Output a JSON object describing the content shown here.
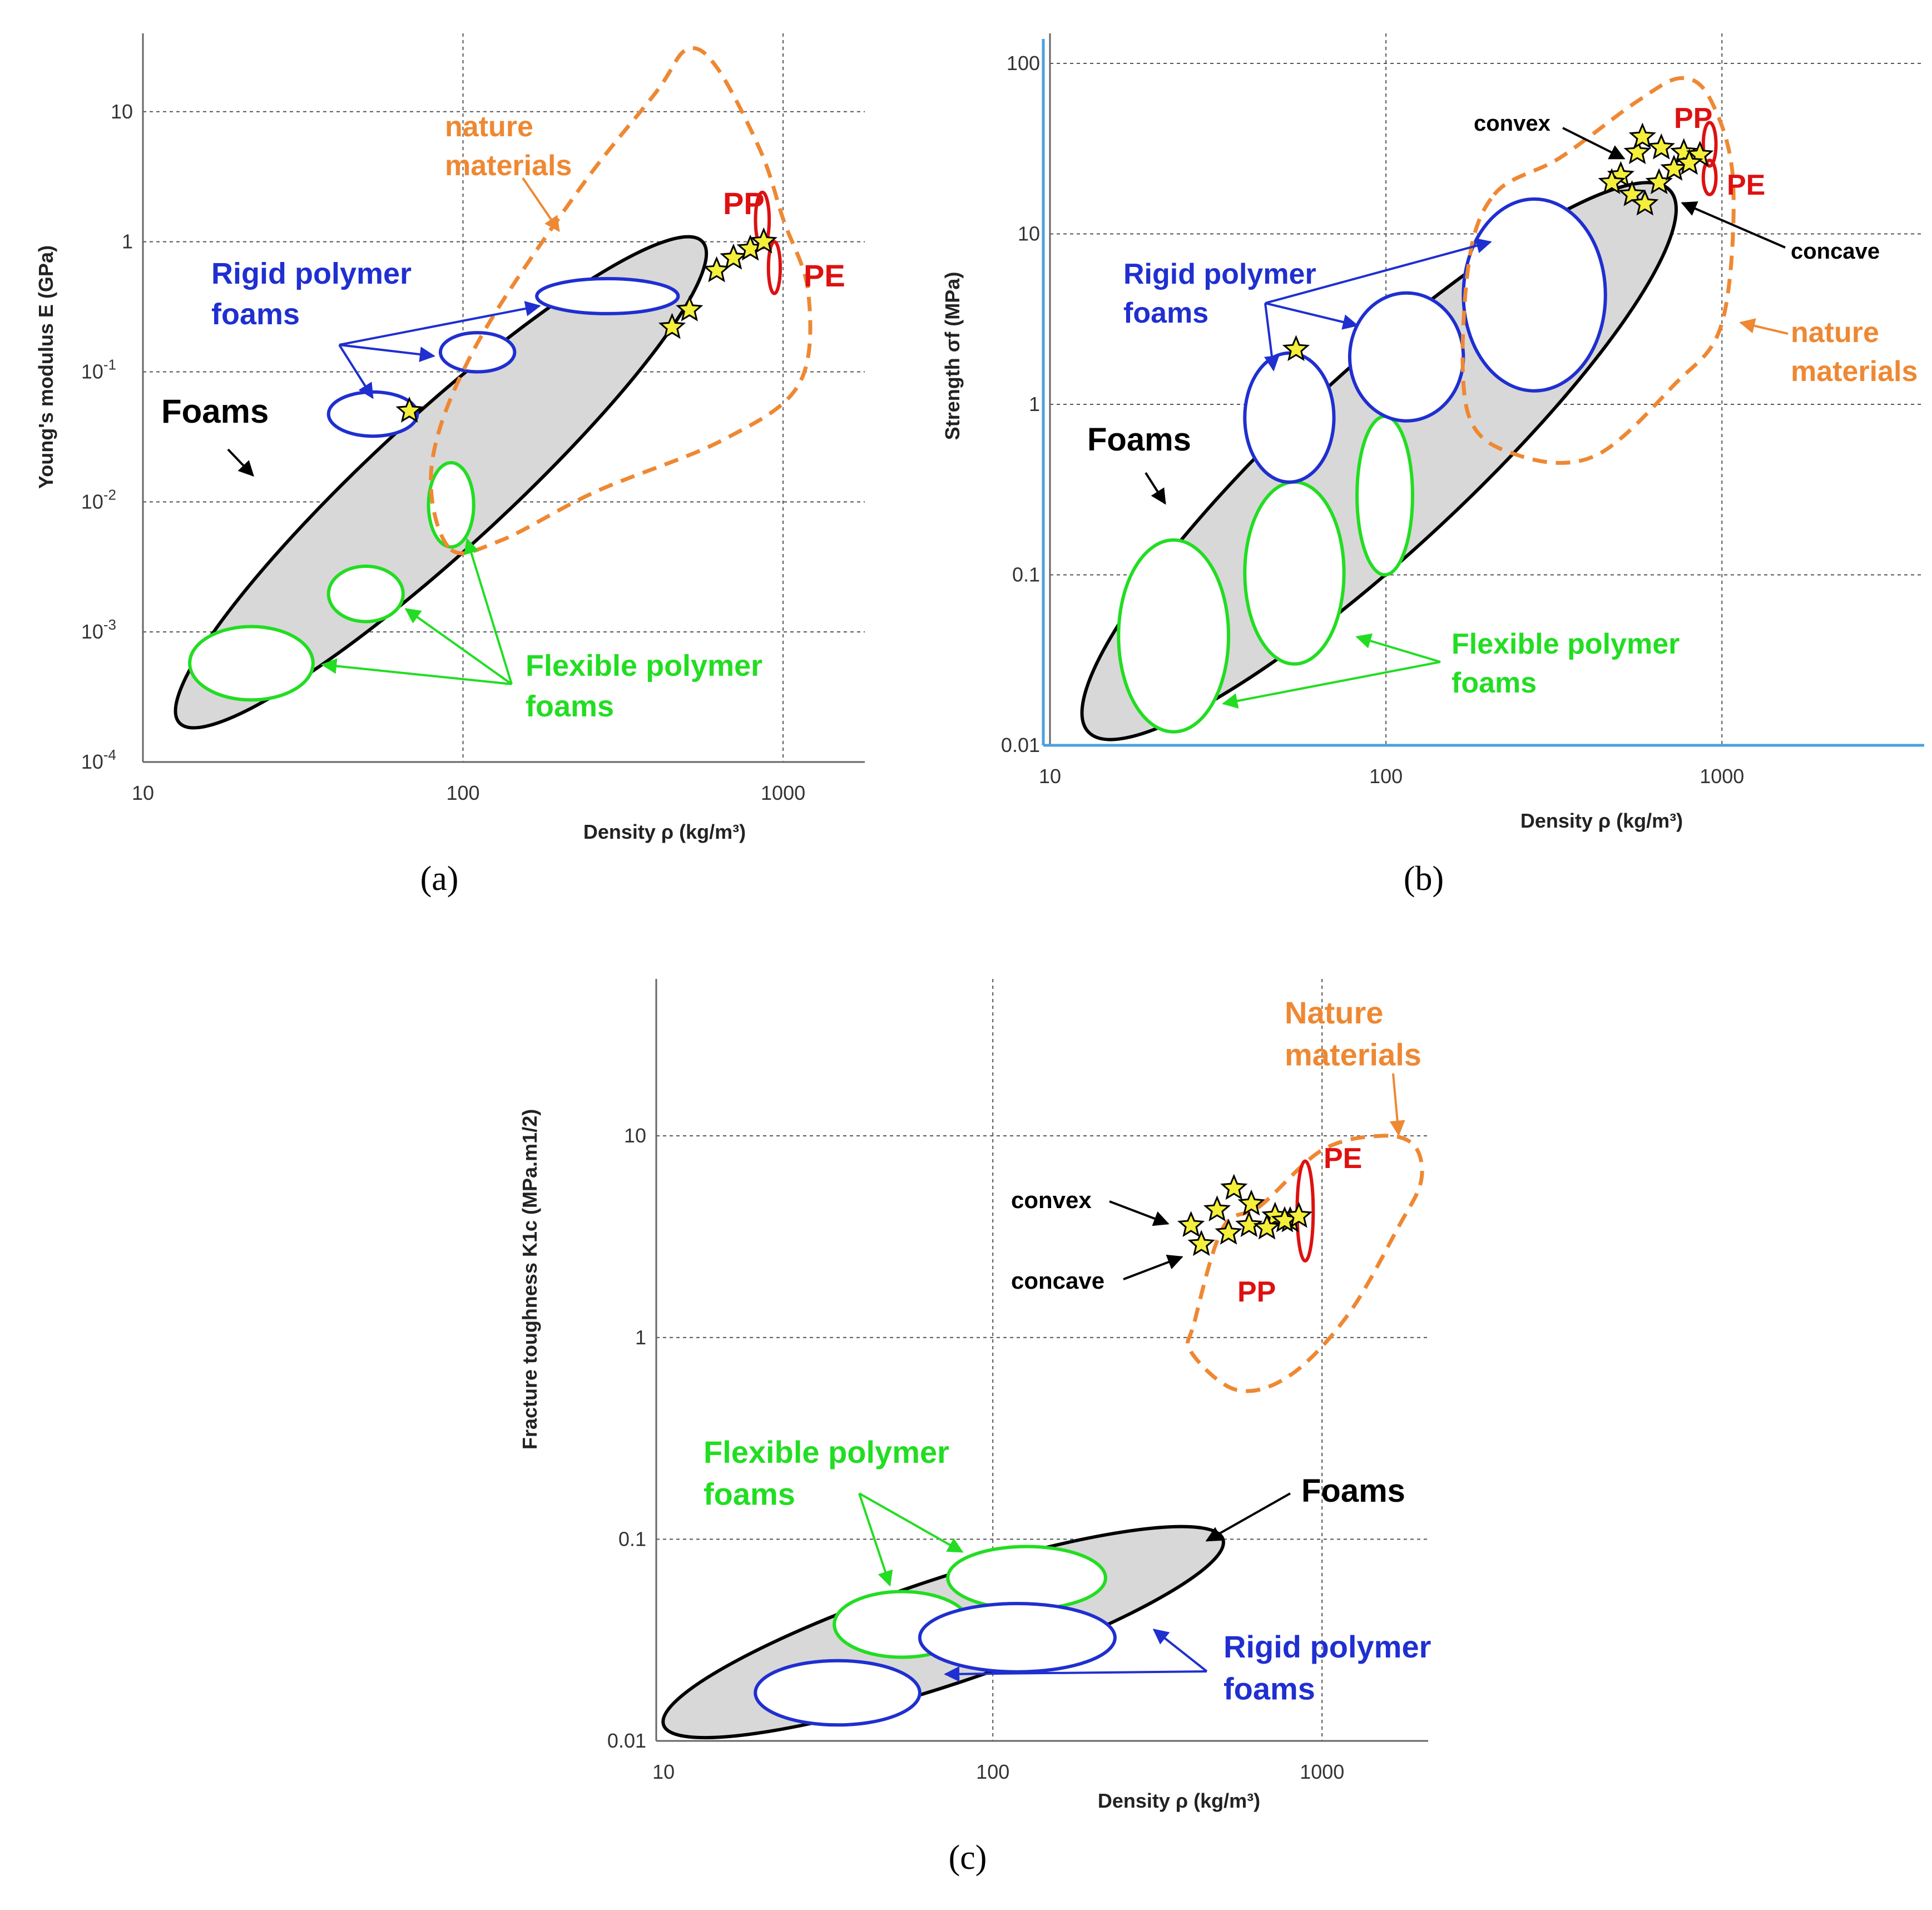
{
  "colors": {
    "foams_fill": "#d8d8d8",
    "foams_stroke": "#000000",
    "rigid": "#1f2fd0",
    "flexible": "#22dd22",
    "nature": "#ee8833",
    "pp_pe": "#dd1111",
    "star": "#f4ef3a",
    "grid": "#555555",
    "blue_axis": "#4aa0e0"
  },
  "chart_data": [
    {
      "type": "scatter",
      "panel_label": "(a)",
      "xlabel": "Density ρ (kg/m³)",
      "ylabel": "Young's modulus E (GPa)",
      "xscale": "log",
      "yscale": "log",
      "xlim": [
        10,
        1800
      ],
      "ylim": [
        0.0001,
        40
      ],
      "xticks": [
        {
          "v": 10,
          "label": "10"
        },
        {
          "v": 100,
          "label": "100"
        },
        {
          "v": 1000,
          "label": "1000"
        }
      ],
      "yticks": [
        {
          "v": 0.0001,
          "base": "10",
          "exp": "-4"
        },
        {
          "v": 0.001,
          "base": "10",
          "exp": "-3"
        },
        {
          "v": 0.01,
          "base": "10",
          "exp": "-2"
        },
        {
          "v": 0.1,
          "base": "10",
          "exp": "-1"
        },
        {
          "v": 1,
          "base": "1",
          "exp": ""
        },
        {
          "v": 10,
          "base": "10",
          "exp": ""
        }
      ],
      "regions": {
        "foams": {
          "x": [
            13,
            560
          ],
          "y": [
            0.0002,
            1.0
          ]
        },
        "rigid_polymer_foams": [
          {
            "x": [
              38,
              72
            ],
            "y": [
              0.032,
              0.07
            ]
          },
          {
            "x": [
              85,
              145
            ],
            "y": [
              0.1,
              0.2
            ]
          },
          {
            "x": [
              170,
              470
            ],
            "y": [
              0.28,
              0.52
            ]
          }
        ],
        "flexible_polymer_foams": [
          {
            "x": [
              14,
              34
            ],
            "y": [
              0.0003,
              0.0011
            ]
          },
          {
            "x": [
              38,
              65
            ],
            "y": [
              0.0012,
              0.0032
            ]
          },
          {
            "x": [
              78,
              108
            ],
            "y": [
              0.0045,
              0.02
            ]
          }
        ],
        "pp": {
          "x": [
            820,
            905
          ],
          "y": [
            0.9,
            2.4
          ]
        },
        "pe": {
          "x": [
            900,
            980
          ],
          "y": [
            0.4,
            1.0
          ]
        }
      },
      "nature_materials_outline": [
        [
          90,
          0.0045
        ],
        [
          80,
          0.02
        ],
        [
          110,
          0.16
        ],
        [
          230,
          2.5
        ],
        [
          400,
          14
        ],
        [
          500,
          30
        ],
        [
          620,
          22
        ],
        [
          850,
          5
        ],
        [
          1000,
          1.5
        ],
        [
          1200,
          0.4
        ],
        [
          1120,
          0.08
        ],
        [
          650,
          0.03
        ],
        [
          260,
          0.012
        ],
        [
          130,
          0.005
        ]
      ],
      "stars": [
        [
          68,
          0.05
        ],
        [
          450,
          0.22
        ],
        [
          510,
          0.3
        ],
        [
          620,
          0.6
        ],
        [
          700,
          0.75
        ],
        [
          790,
          0.88
        ],
        [
          870,
          1.0
        ]
      ],
      "labels": {
        "nature": [
          "nature",
          "materials"
        ],
        "pp": "PP",
        "pe": "PE",
        "rigid": [
          "Rigid polymer",
          "foams"
        ],
        "flexible": [
          "Flexible polymer",
          "foams"
        ],
        "foams": "Foams"
      }
    },
    {
      "type": "scatter",
      "panel_label": "(b)",
      "xlabel": "Density ρ (kg/m³)",
      "ylabel": "Strength σf (MPa)",
      "xscale": "log",
      "yscale": "log",
      "xlim": [
        10,
        4000
      ],
      "ylim": [
        0.01,
        150
      ],
      "xticks": [
        {
          "v": 10,
          "label": "10"
        },
        {
          "v": 100,
          "label": "100"
        },
        {
          "v": 1000,
          "label": "1000"
        }
      ],
      "yticks": [
        {
          "v": 0.01,
          "base": "0.01",
          "exp": ""
        },
        {
          "v": 0.1,
          "base": "0.1",
          "exp": ""
        },
        {
          "v": 1,
          "base": "1",
          "exp": ""
        },
        {
          "v": 10,
          "base": "10",
          "exp": ""
        },
        {
          "v": 100,
          "base": "100",
          "exp": ""
        }
      ],
      "regions": {
        "foams": {
          "x": [
            13,
            700
          ],
          "y": [
            0.012,
            18
          ]
        },
        "rigid_polymer_foams": [
          {
            "x": [
              38,
              70
            ],
            "y": [
              0.35,
              2.0
            ]
          },
          {
            "x": [
              78,
              170
            ],
            "y": [
              0.8,
              4.5
            ]
          },
          {
            "x": [
              170,
              450
            ],
            "y": [
              1.2,
              16
            ]
          }
        ],
        "flexible_polymer_foams": [
          {
            "x": [
              16,
              34
            ],
            "y": [
              0.012,
              0.16
            ]
          },
          {
            "x": [
              38,
              75
            ],
            "y": [
              0.03,
              0.35
            ]
          },
          {
            "x": [
              82,
              120
            ],
            "y": [
              0.1,
              0.85
            ]
          }
        ],
        "pp": {
          "x": [
            880,
            960
          ],
          "y": [
            25,
            45
          ]
        },
        "pe": {
          "x": [
            880,
            960
          ],
          "y": [
            17,
            27
          ]
        }
      },
      "nature_materials_outline": [
        [
          210,
          17
        ],
        [
          330,
          28
        ],
        [
          560,
          60
        ],
        [
          760,
          82
        ],
        [
          930,
          60
        ],
        [
          1080,
          20
        ],
        [
          1000,
          3
        ],
        [
          720,
          1.3
        ],
        [
          420,
          0.5
        ],
        [
          250,
          0.5
        ],
        [
          175,
          0.9
        ],
        [
          175,
          6
        ]
      ],
      "stars_convex": [
        [
          500,
          22
        ],
        [
          560,
          30
        ],
        [
          580,
          37
        ],
        [
          660,
          32
        ],
        [
          770,
          30
        ],
        [
          860,
          29
        ]
      ],
      "stars_concave": [
        [
          470,
          20
        ],
        [
          540,
          17
        ],
        [
          590,
          15
        ],
        [
          650,
          20
        ],
        [
          720,
          24
        ],
        [
          800,
          26
        ]
      ],
      "stars_other": [
        [
          54,
          2.1
        ]
      ],
      "labels": {
        "convex": "convex",
        "concave": "concave",
        "nature": [
          "nature",
          "materials"
        ],
        "pp": "PP",
        "pe": "PE",
        "rigid": [
          "Rigid polymer",
          "foams"
        ],
        "flexible": [
          "Flexible polymer",
          "foams"
        ],
        "foams": "Foams"
      }
    },
    {
      "type": "scatter",
      "panel_label": "(c)",
      "xlabel": "Density ρ (kg/m³)",
      "ylabel": "Fracture toughness K1c (MPa.m1/2)",
      "xscale": "log",
      "yscale": "log",
      "xlim": [
        9.5,
        2100
      ],
      "ylim": [
        0.01,
        60
      ],
      "xticks": [
        {
          "v": 10,
          "label": "10"
        },
        {
          "v": 100,
          "label": "100"
        },
        {
          "v": 1000,
          "label": "1000"
        }
      ],
      "yticks": [
        {
          "v": 0.01,
          "base": "0.01",
          "exp": ""
        },
        {
          "v": 0.1,
          "base": "0.1",
          "exp": ""
        },
        {
          "v": 1,
          "base": "1",
          "exp": ""
        },
        {
          "v": 10,
          "base": "10",
          "exp": ""
        }
      ],
      "regions": {
        "foams": {
          "x": [
            10,
            500
          ],
          "y": [
            0.012,
            0.1
          ]
        },
        "rigid_polymer_foams": [
          {
            "x": [
              19,
              60
            ],
            "y": [
              0.012,
              0.025
            ]
          },
          {
            "x": [
              60,
              235
            ],
            "y": [
              0.022,
              0.048
            ]
          }
        ],
        "flexible_polymer_foams": [
          {
            "x": [
              33,
              85
            ],
            "y": [
              0.026,
              0.055
            ]
          },
          {
            "x": [
              73,
              220
            ],
            "y": [
              0.045,
              0.092
            ]
          }
        ],
        "pp": {
          "x": [
            840,
            940
          ],
          "y": [
            2.4,
            7.5
          ]
        },
        "pe": {
          "x": [
            840,
            940
          ],
          "y": [
            2.4,
            7.5
          ]
        }
      },
      "nature_materials_outline": [
        [
          410,
          1.2
        ],
        [
          500,
          3.5
        ],
        [
          650,
          4.5
        ],
        [
          1000,
          8.5
        ],
        [
          1500,
          10
        ],
        [
          1900,
          9
        ],
        [
          2000,
          6
        ],
        [
          1700,
          3.5
        ],
        [
          1200,
          1.3
        ],
        [
          800,
          0.65
        ],
        [
          550,
          0.55
        ],
        [
          400,
          0.85
        ]
      ],
      "stars_convex": [
        [
          400,
          3.6
        ],
        [
          480,
          4.3
        ],
        [
          540,
          5.5
        ],
        [
          610,
          4.6
        ],
        [
          720,
          4.0
        ],
        [
          800,
          3.8
        ]
      ],
      "stars_concave": [
        [
          430,
          2.9
        ],
        [
          520,
          3.3
        ],
        [
          600,
          3.6
        ],
        [
          680,
          3.5
        ],
        [
          770,
          3.8
        ],
        [
          850,
          4.0
        ]
      ],
      "labels": {
        "convex": "convex",
        "concave": "concave",
        "nature": [
          "Nature",
          "materials"
        ],
        "pp": "PP",
        "pe": "PE",
        "rigid": [
          "Rigid polymer",
          "foams"
        ],
        "flexible": [
          "Flexible polymer",
          "foams"
        ],
        "foams": "Foams"
      }
    }
  ]
}
